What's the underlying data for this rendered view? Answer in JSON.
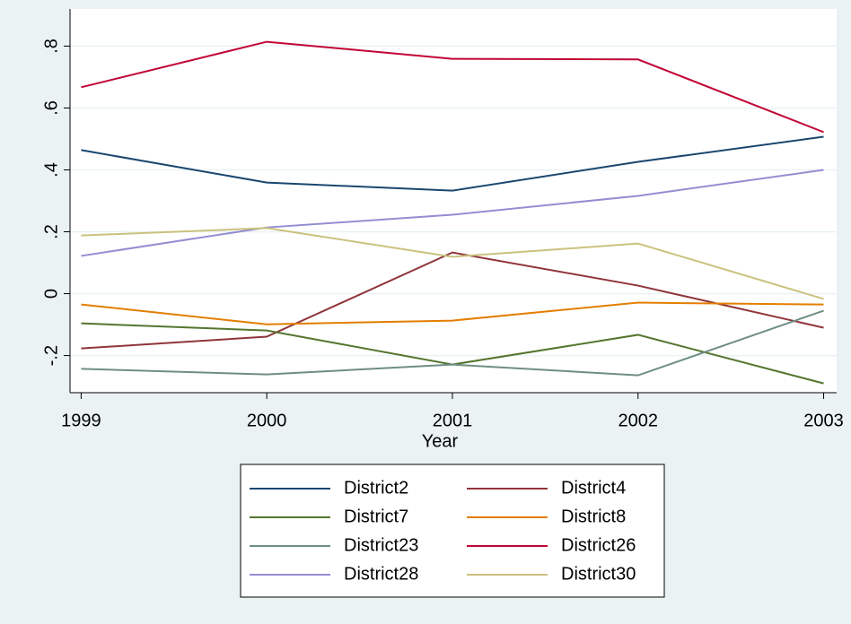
{
  "chart_data": {
    "type": "line",
    "x_label": "Year",
    "x": [
      1999,
      2000,
      2001,
      2002,
      2003
    ],
    "xlim": [
      1998.94,
      2003.07
    ],
    "xticks": [
      1999,
      2000,
      2001,
      2002,
      2003
    ],
    "ylim": [
      -0.32,
      0.92
    ],
    "yticks": [
      {
        "value": -0.2,
        "label": "-.2"
      },
      0,
      {
        "value": 0.2,
        "label": ".2"
      },
      {
        "value": 0.4,
        "label": ".4"
      },
      {
        "value": 0.6,
        "label": ".6"
      },
      {
        "value": 0.8,
        "label": ".8"
      }
    ],
    "grid": true,
    "legend": "bottom",
    "series": [
      {
        "name": "District2",
        "color": "#1a476f",
        "values": [
          0.464,
          0.359,
          0.333,
          0.426,
          0.507
        ]
      },
      {
        "name": "District4",
        "color": "#90353b",
        "values": [
          -0.177,
          -0.139,
          0.133,
          0.026,
          -0.11
        ]
      },
      {
        "name": "District7",
        "color": "#55752f",
        "values": [
          -0.096,
          -0.119,
          -0.229,
          -0.133,
          -0.29
        ]
      },
      {
        "name": "District8",
        "color": "#e37e00",
        "values": [
          -0.035,
          -0.099,
          -0.087,
          -0.029,
          -0.035
        ]
      },
      {
        "name": "District23",
        "color": "#6e8e84",
        "values": [
          -0.243,
          -0.261,
          -0.229,
          -0.264,
          -0.055
        ]
      },
      {
        "name": "District26",
        "color": "#c10534",
        "values": [
          0.667,
          0.814,
          0.759,
          0.757,
          0.522
        ]
      },
      {
        "name": "District28",
        "color": "#938dd2",
        "values": [
          0.122,
          0.214,
          0.255,
          0.316,
          0.4
        ]
      },
      {
        "name": "District30",
        "color": "#cac27e",
        "values": [
          0.188,
          0.212,
          0.119,
          0.162,
          -0.017
        ]
      }
    ]
  }
}
